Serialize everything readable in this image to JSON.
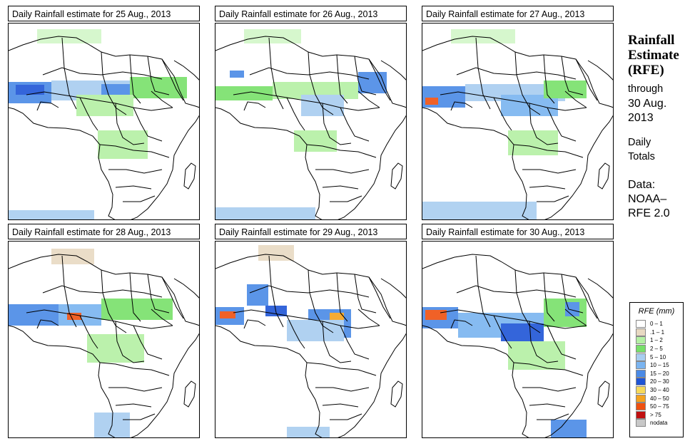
{
  "panels": [
    {
      "title": "Daily Rainfall estimate for  25 Aug., 2013"
    },
    {
      "title": "Daily Rainfall estimate for  26 Aug., 2013"
    },
    {
      "title": "Daily Rainfall estimate for  27 Aug., 2013"
    },
    {
      "title": "Daily Rainfall estimate for  28 Aug., 2013"
    },
    {
      "title": "Daily Rainfall estimate for  29 Aug., 2013"
    },
    {
      "title": "Daily Rainfall estimate for  30 Aug., 2013"
    }
  ],
  "sidebar": {
    "heading_line1": "Rainfall",
    "heading_line2": "Estimate",
    "heading_line3": "(RFE)",
    "through": "through",
    "date_line1": "30 Aug.",
    "date_line2": "2013",
    "daily_line1": "Daily",
    "daily_line2": "Totals",
    "data_line1": "Data:",
    "data_line2": "NOAA–",
    "data_line3": "RFE 2.0"
  },
  "legend": {
    "title": "RFE (mm)",
    "items": [
      {
        "label": "0 – 1",
        "color": "#ffffff"
      },
      {
        "label": ".1 – 1",
        "color": "#e8d9c2"
      },
      {
        "label": "1 – 2",
        "color": "#b4f0a4"
      },
      {
        "label": "2 – 5",
        "color": "#78e06a"
      },
      {
        "label": "5 – 10",
        "color": "#a8cdf0"
      },
      {
        "label": "10 – 15",
        "color": "#7ab4f0"
      },
      {
        "label": "15 – 20",
        "color": "#4a8ae6"
      },
      {
        "label": "20 – 30",
        "color": "#1f55d6"
      },
      {
        "label": "30 – 40",
        "color": "#f6d95a"
      },
      {
        "label": "40 – 50",
        "color": "#f4a21e"
      },
      {
        "label": "50 – 75",
        "color": "#ef5010"
      },
      {
        "label": "> 75",
        "color": "#c01010"
      },
      {
        "label": "nodata",
        "color": "#c8c8c8"
      }
    ]
  }
}
